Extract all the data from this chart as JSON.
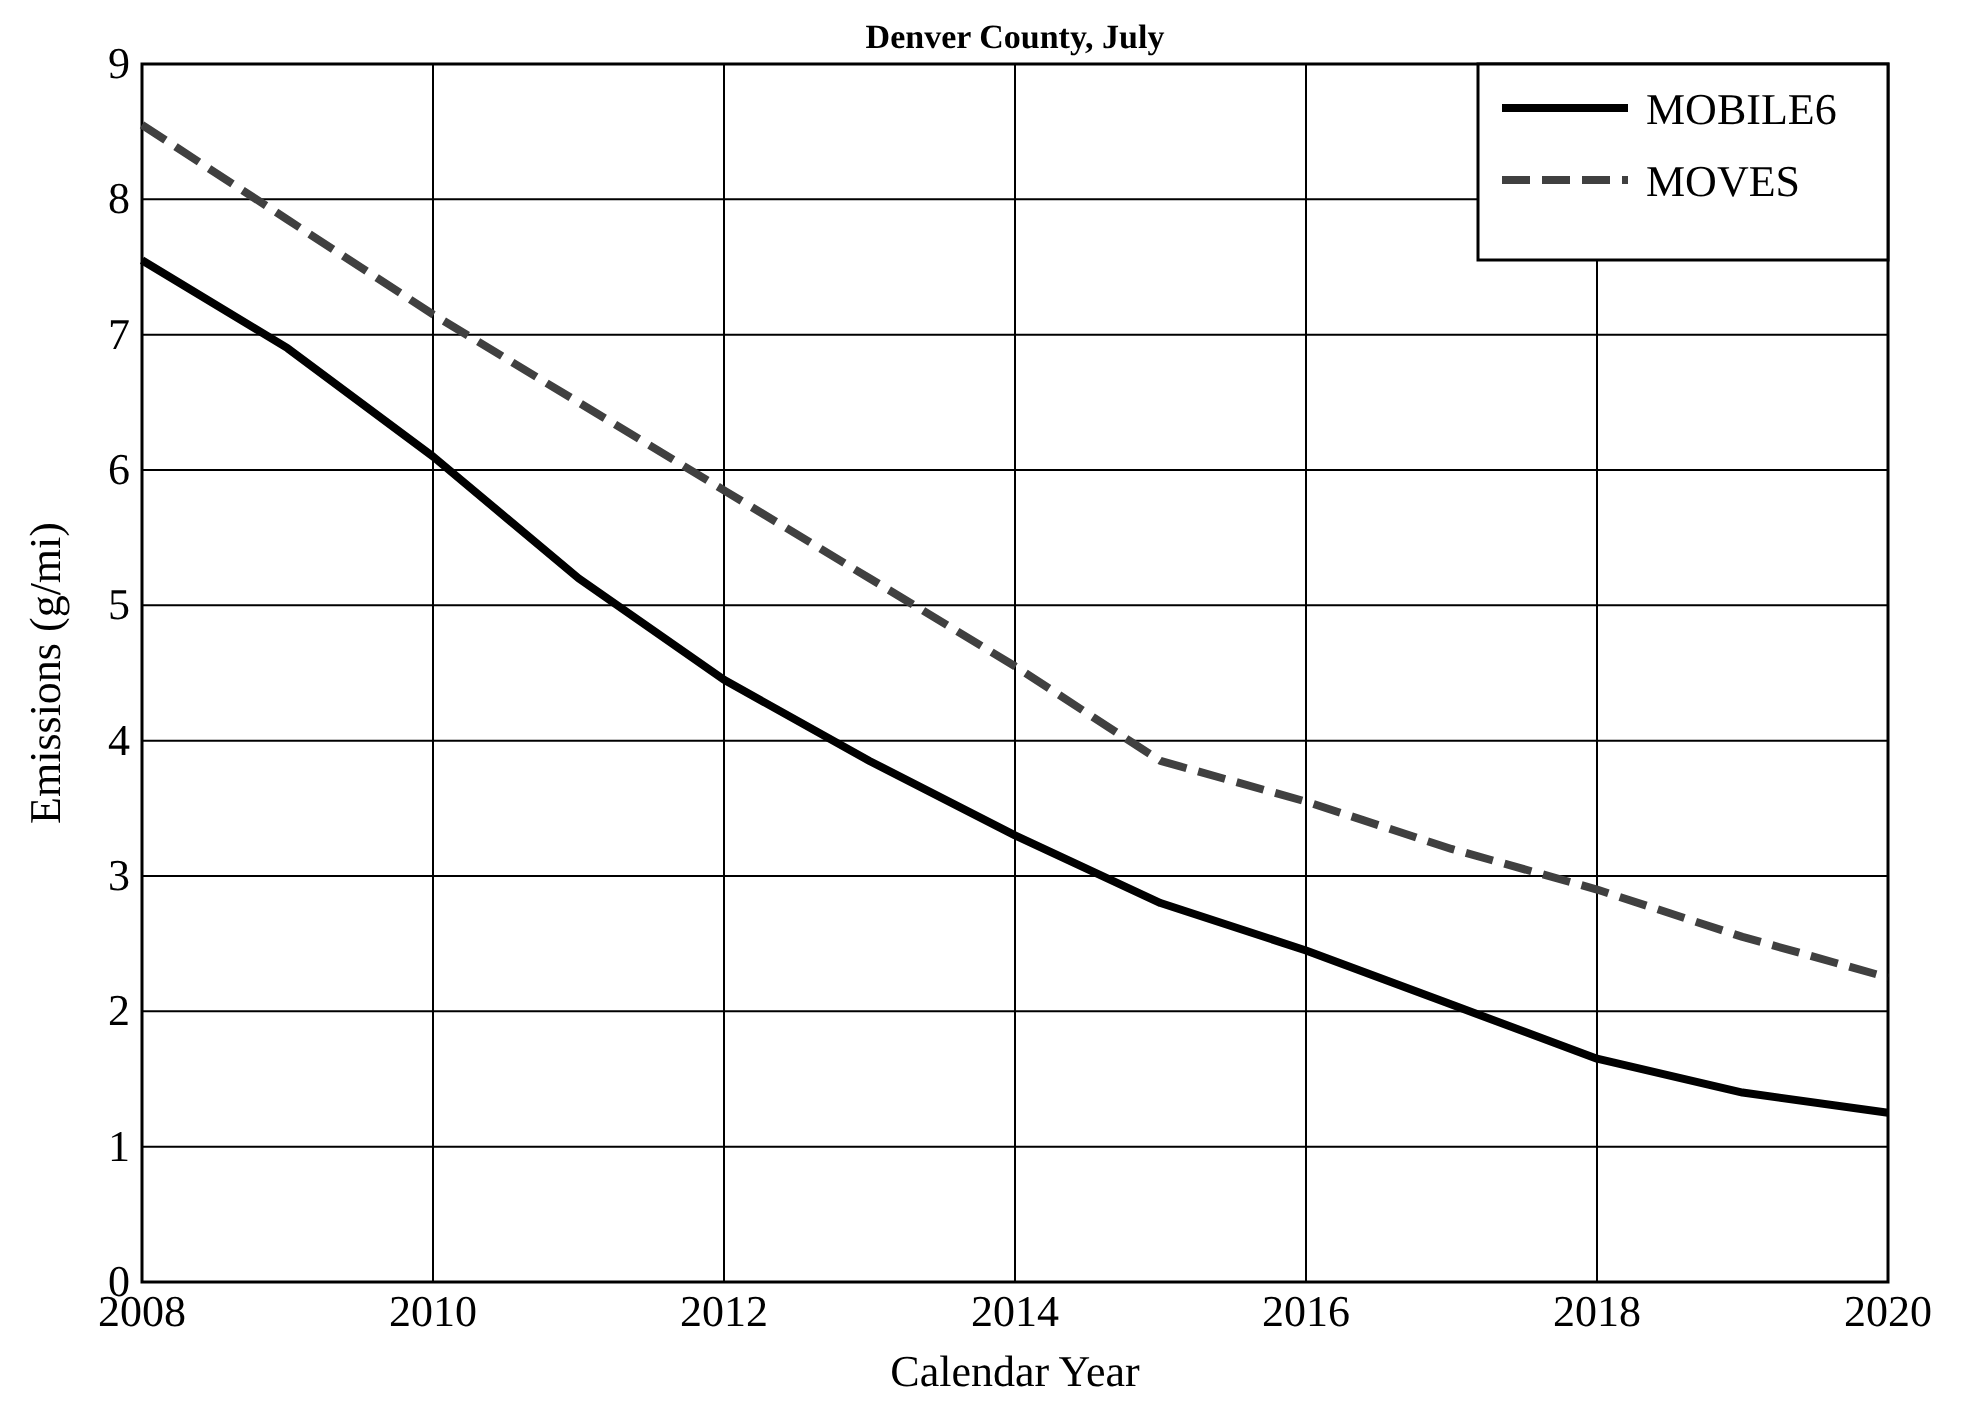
{
  "chart_data": {
    "type": "line",
    "title": "Denver County, July",
    "xlabel": "Calendar Year",
    "ylabel": "Emissions (g/mi)",
    "x": [
      2008,
      2009,
      2010,
      2011,
      2012,
      2013,
      2014,
      2015,
      2016,
      2017,
      2018,
      2019,
      2020
    ],
    "series": [
      {
        "name": "MOBILE6",
        "color": "#000000",
        "line_style": "solid",
        "values": [
          7.55,
          6.9,
          6.1,
          5.2,
          4.45,
          3.85,
          3.3,
          2.8,
          2.45,
          2.05,
          1.65,
          1.4,
          1.25
        ]
      },
      {
        "name": "MOVES",
        "color": "#404040",
        "line_style": "dashed",
        "values": [
          8.55,
          7.85,
          7.15,
          6.5,
          5.85,
          5.2,
          4.55,
          3.85,
          3.55,
          3.2,
          2.9,
          2.55,
          2.25
        ]
      }
    ],
    "xlim": [
      2008,
      2020
    ],
    "xticks": [
      2008,
      2010,
      2012,
      2014,
      2016,
      2018,
      2020
    ],
    "ylim": [
      0,
      9
    ],
    "yticks": [
      0,
      1,
      2,
      3,
      4,
      5,
      6,
      7,
      8,
      9
    ],
    "grid": true,
    "legend": "top right"
  }
}
